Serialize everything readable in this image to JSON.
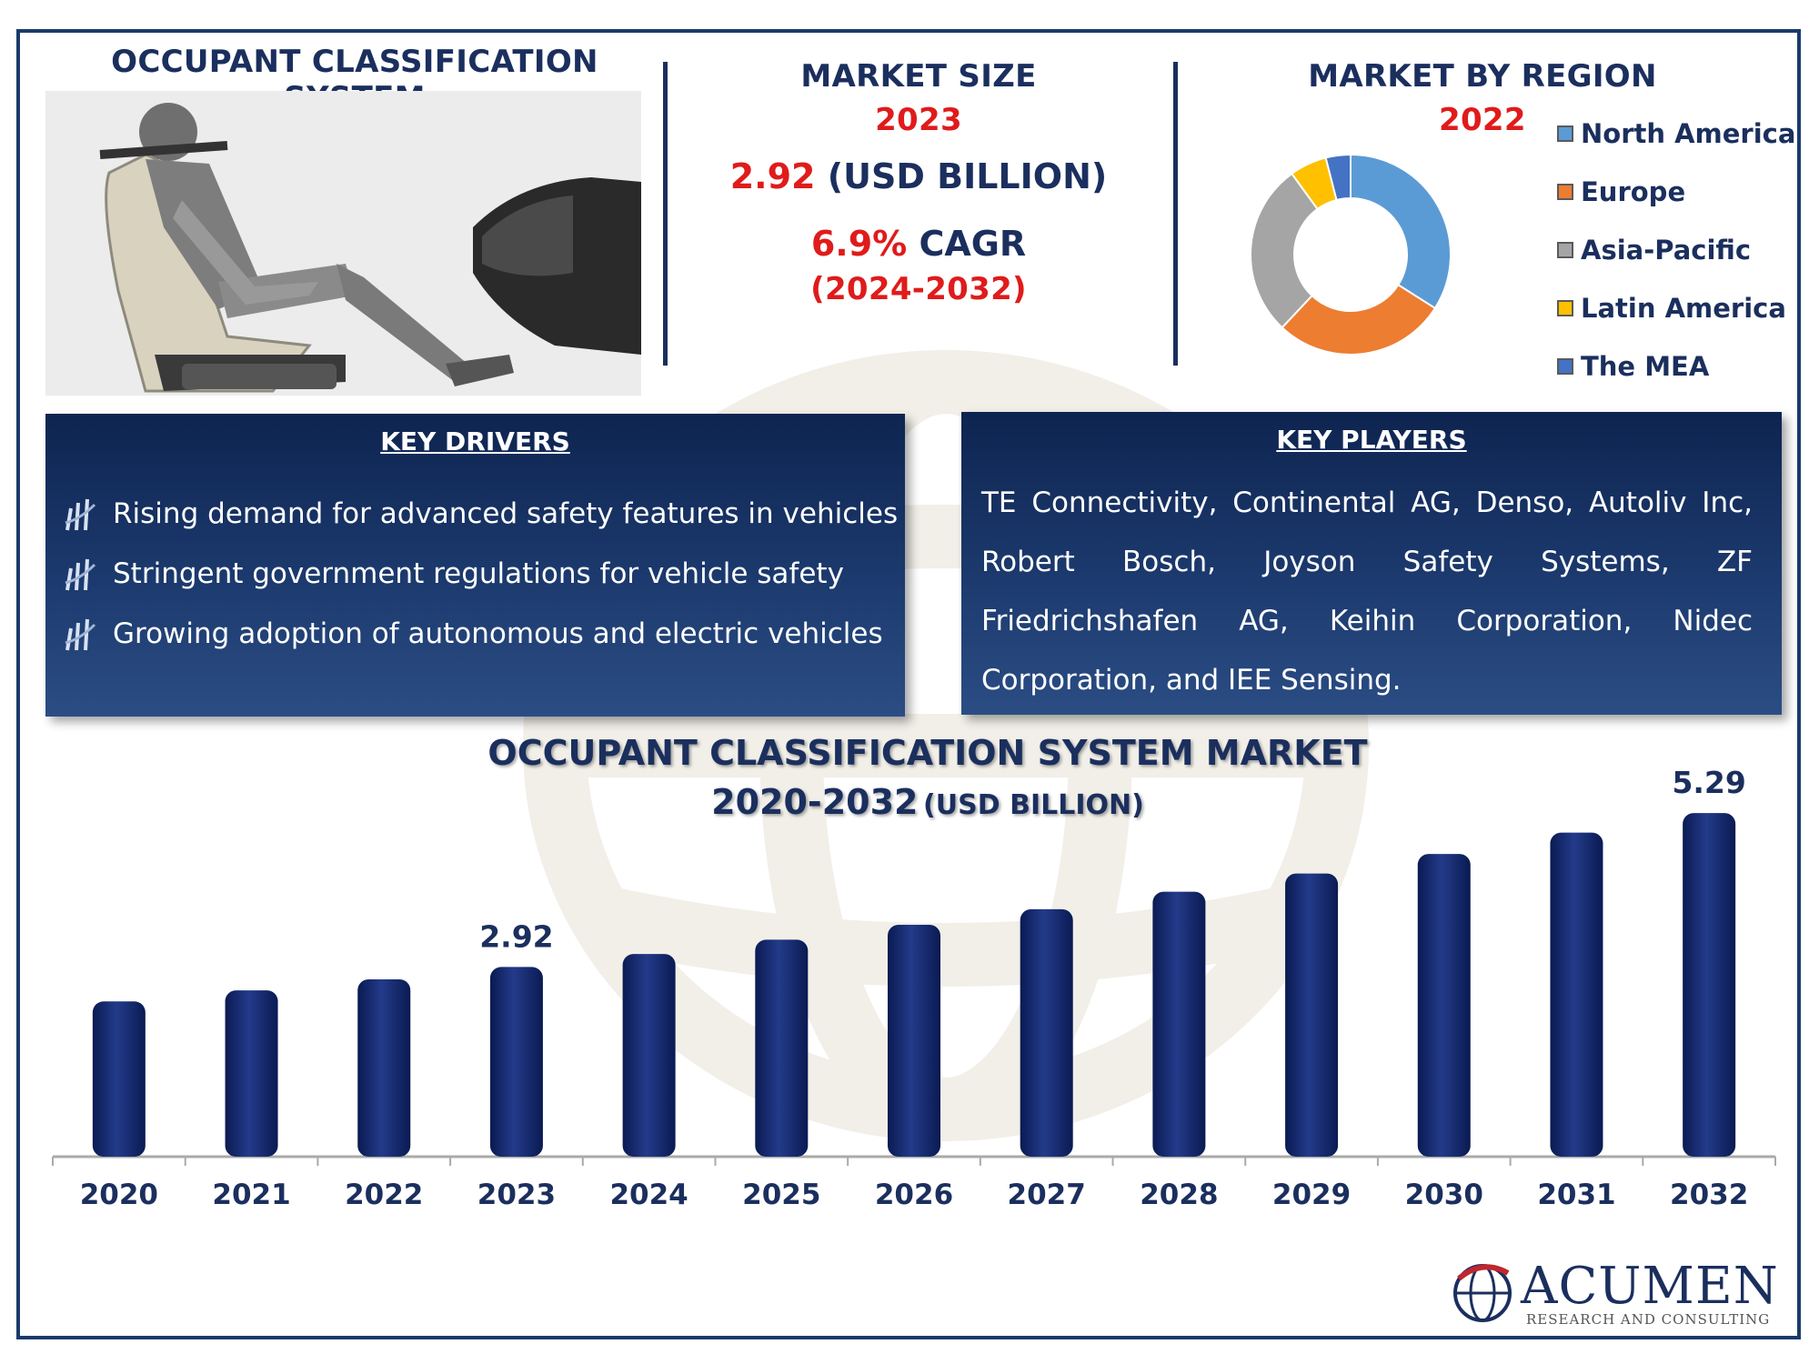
{
  "header_left": {
    "title": "OCCUPANT CLASSIFICATION SYSTEM"
  },
  "market_size": {
    "title": "MARKET SIZE",
    "year": "2023",
    "value": "2.92",
    "unit": "(USD BILLION)",
    "cagr_value": "6.9%",
    "cagr_label": "CAGR",
    "cagr_period": "(2024-2032)"
  },
  "region": {
    "title": "MARKET BY REGION",
    "year": "2022",
    "segments": [
      {
        "label": "North America",
        "share": 34,
        "color": "#5b9bd5"
      },
      {
        "label": "Europe",
        "share": 28,
        "color": "#ed7d31"
      },
      {
        "label": "Asia-Pacific",
        "share": 28,
        "color": "#a5a5a5"
      },
      {
        "label": "Latin America",
        "share": 6,
        "color": "#ffc000"
      },
      {
        "label": "The MEA",
        "share": 4,
        "color": "#4472c4"
      }
    ]
  },
  "drivers": {
    "title": "KEY DRIVERS",
    "items": [
      "Rising demand for advanced safety features in vehicles",
      "Stringent government regulations for vehicle safety",
      "Growing adoption of autonomous and electric vehicles"
    ]
  },
  "players": {
    "title": "KEY PLAYERS",
    "text": "TE Connectivity, Continental AG, Denso, Autoliv Inc, Robert Bosch, Joyson Safety Systems, ZF Friedrichshafen AG, Keihin  Corporation, Nidec Corporation, and IEE Sensing."
  },
  "chart_title": {
    "line1": "OCCUPANT CLASSIFICATION SYSTEM MARKET",
    "line2_main": "2020-2032",
    "line2_unit": "(USD BILLION)"
  },
  "chart_data": {
    "type": "bar",
    "categories": [
      "2020",
      "2021",
      "2022",
      "2023",
      "2024",
      "2025",
      "2026",
      "2027",
      "2028",
      "2029",
      "2030",
      "2031",
      "2032"
    ],
    "values": [
      2.39,
      2.56,
      2.73,
      2.92,
      3.12,
      3.34,
      3.57,
      3.81,
      4.08,
      4.36,
      4.66,
      4.99,
      5.29
    ],
    "data_labels": [
      {
        "index": 3,
        "text": "2.92"
      },
      {
        "index": 12,
        "text": "5.29"
      }
    ],
    "ylim": [
      0,
      5.6
    ],
    "color": "#12256a",
    "grid": false
  },
  "logo": {
    "name": "ACUMEN",
    "tagline": "RESEARCH AND CONSULTING"
  }
}
